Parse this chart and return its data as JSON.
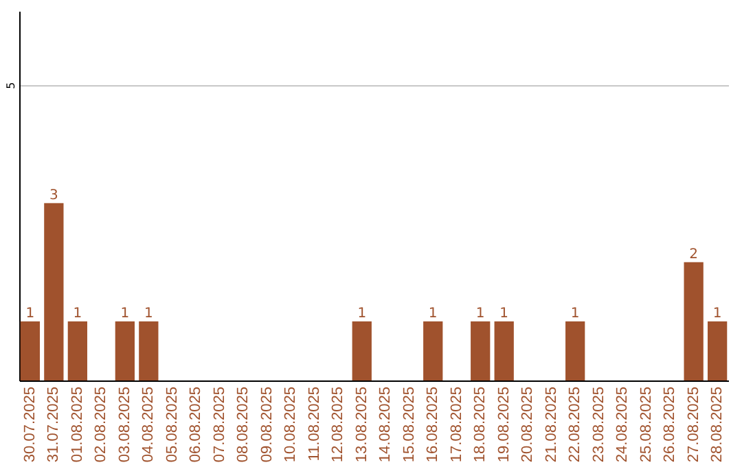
{
  "chart_data": {
    "type": "bar",
    "categories": [
      "30.07.2025",
      "31.07.2025",
      "01.08.2025",
      "02.08.2025",
      "03.08.2025",
      "04.08.2025",
      "05.08.2025",
      "06.08.2025",
      "07.08.2025",
      "08.08.2025",
      "09.08.2025",
      "10.08.2025",
      "11.08.2025",
      "12.08.2025",
      "13.08.2025",
      "14.08.2025",
      "15.08.2025",
      "16.08.2025",
      "17.08.2025",
      "18.08.2025",
      "19.08.2025",
      "20.08.2025",
      "21.08.2025",
      "22.08.2025",
      "23.08.2025",
      "24.08.2025",
      "25.08.2025",
      "26.08.2025",
      "27.08.2025",
      "28.08.2025"
    ],
    "values": [
      1,
      3,
      1,
      0,
      1,
      1,
      0,
      0,
      0,
      0,
      0,
      0,
      0,
      0,
      1,
      0,
      0,
      1,
      0,
      1,
      1,
      0,
      0,
      1,
      0,
      0,
      0,
      0,
      2,
      1
    ],
    "value_labels": [
      "1",
      "3",
      "1",
      null,
      "1",
      "1",
      null,
      null,
      null,
      null,
      null,
      null,
      null,
      null,
      "1",
      null,
      null,
      "1",
      null,
      "1",
      "1",
      null,
      null,
      "1",
      null,
      null,
      null,
      null,
      "2",
      "1"
    ],
    "color": "#a0522d",
    "ylim": [
      0,
      6.25
    ],
    "yticks": [
      5
    ],
    "grid": "y"
  }
}
